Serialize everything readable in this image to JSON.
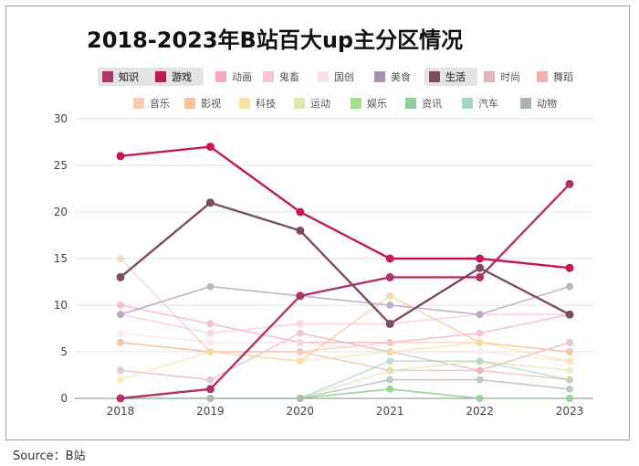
{
  "title": "2018-2023年B站百大up主分区情况",
  "source": "Source：B站",
  "chart_data": {
    "type": "line",
    "title": "2018-2023年B站百大up主分区情况",
    "x": [
      "2018",
      "2019",
      "2020",
      "2021",
      "2022",
      "2023"
    ],
    "ylim": [
      0,
      30
    ],
    "yticks": [
      0,
      5,
      10,
      15,
      20,
      25,
      30
    ],
    "grid": "horizontal",
    "legend_position": "top",
    "series": [
      {
        "name": "知识",
        "color": "#b0336b",
        "values": [
          0,
          1,
          11,
          13,
          13,
          23
        ],
        "highlight": true
      },
      {
        "name": "游戏",
        "color": "#c2185b",
        "values": [
          26,
          27,
          20,
          15,
          15,
          14
        ],
        "highlight": true
      },
      {
        "name": "动画",
        "color": "#f4a6c4",
        "values": [
          10,
          8,
          6,
          6,
          7,
          9
        ],
        "highlight": false
      },
      {
        "name": "鬼畜",
        "color": "#f9c4d6",
        "values": [
          9,
          7,
          8,
          8,
          9,
          9
        ],
        "highlight": false
      },
      {
        "name": "国创",
        "color": "#fde0ea",
        "values": [
          7,
          6,
          6,
          5,
          5,
          4
        ],
        "highlight": false
      },
      {
        "name": "美食",
        "color": "#a593b8",
        "values": [
          9,
          12,
          11,
          10,
          9,
          12
        ],
        "highlight": false
      },
      {
        "name": "生活",
        "color": "#7e4a66",
        "values": [
          13,
          21,
          18,
          8,
          14,
          9
        ],
        "highlight": true
      },
      {
        "name": "时尚",
        "color": "#e0b4bd",
        "values": [
          3,
          2,
          7,
          5,
          3,
          6
        ],
        "highlight": false
      },
      {
        "name": "舞蹈",
        "color": "#f2b5ad",
        "values": [
          6,
          5,
          5,
          3,
          3,
          2
        ],
        "highlight": false
      },
      {
        "name": "音乐",
        "color": "#f8c9b2",
        "values": [
          15,
          5,
          5,
          6,
          6,
          5
        ],
        "highlight": false
      },
      {
        "name": "影视",
        "color": "#f6c595",
        "values": [
          6,
          5,
          4,
          11,
          6,
          5
        ],
        "highlight": false
      },
      {
        "name": "科技",
        "color": "#fbe4a4",
        "values": [
          2,
          5,
          4,
          5,
          6,
          4
        ],
        "highlight": false
      },
      {
        "name": "运动",
        "color": "#dfe8a8",
        "values": [
          0,
          0,
          0,
          3,
          4,
          3
        ],
        "highlight": false
      },
      {
        "name": "娱乐",
        "color": "#a8dc8f",
        "values": [
          0,
          0,
          0,
          1,
          0,
          0
        ],
        "highlight": false
      },
      {
        "name": "资讯",
        "color": "#8fcf9c",
        "values": [
          0,
          0,
          0,
          1,
          0,
          0
        ],
        "highlight": false
      },
      {
        "name": "汽车",
        "color": "#a3d6c6",
        "values": [
          0,
          0,
          0,
          4,
          4,
          2
        ],
        "highlight": false
      },
      {
        "name": "动物",
        "color": "#a6b8a9",
        "values": [
          0,
          0,
          0,
          2,
          2,
          1
        ],
        "highlight": false
      }
    ]
  }
}
